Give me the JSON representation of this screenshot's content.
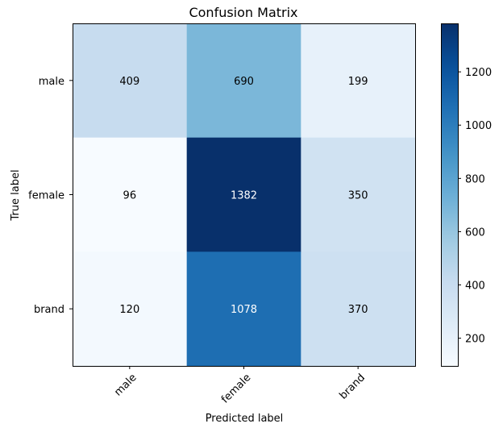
{
  "chart_data": {
    "type": "heatmap",
    "title": "Confusion Matrix",
    "xlabel": "Predicted label",
    "ylabel": "True label",
    "x_categories": [
      "male",
      "female",
      "brand"
    ],
    "y_categories": [
      "male",
      "female",
      "brand"
    ],
    "values": [
      [
        409,
        690,
        199
      ],
      [
        96,
        1382,
        350
      ],
      [
        120,
        1078,
        370
      ]
    ],
    "colormap": "Blues",
    "vmin": 96,
    "vmax": 1382,
    "colorbar_ticks": [
      200,
      400,
      600,
      800,
      1000,
      1200
    ],
    "text_threshold": 691
  },
  "colors": {
    "low": "#f7fbff",
    "high": "#08306b",
    "dark_text": "#000000",
    "light_text": "#ffffff",
    "axis": "#000000"
  }
}
